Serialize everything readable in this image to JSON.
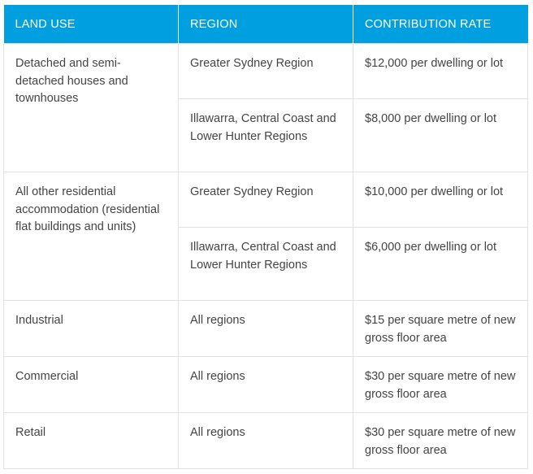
{
  "table": {
    "headers": {
      "land_use": "LAND USE",
      "region": "REGION",
      "contribution_rate": "CONTRIBUTION RATE"
    },
    "rows": {
      "detached": {
        "land_use": "Detached and semi-detached houses and townhouses",
        "regions": [
          {
            "region": "Greater Sydney Region",
            "rate": "$12,000 per dwelling or lot"
          },
          {
            "region": "Illawarra, Central Coast and Lower Hunter Regions",
            "rate": "$8,000 per dwelling or lot"
          }
        ]
      },
      "other_residential": {
        "land_use": "All other residential accommodation (residential flat buildings and units)",
        "regions": [
          {
            "region": "Greater Sydney Region",
            "rate": "$10,000 per dwelling or lot"
          },
          {
            "region": "Illawarra, Central Coast and Lower Hunter Regions",
            "rate": "$6,000 per dwelling or lot"
          }
        ]
      },
      "industrial": {
        "land_use": "Industrial",
        "region": "All regions",
        "rate": "$15 per square metre of new gross floor area"
      },
      "commercial": {
        "land_use": "Commercial",
        "region": "All regions",
        "rate": "$30 per square metre of new gross floor area"
      },
      "retail": {
        "land_use": "Retail",
        "region": "All regions",
        "rate": "$30 per square metre of new gross floor area"
      }
    }
  },
  "colors": {
    "header_background": "#00a0e0",
    "header_text": "#ffffff",
    "body_text": "#444444",
    "border": "#e2e2e2"
  }
}
